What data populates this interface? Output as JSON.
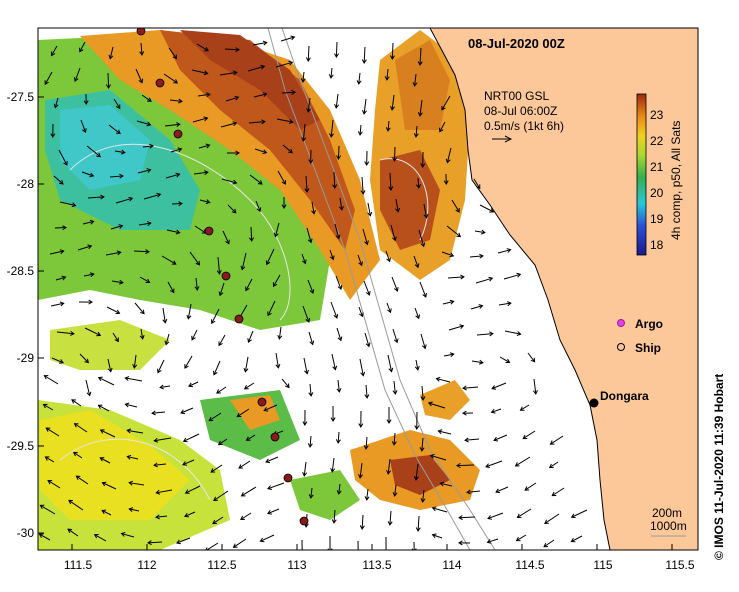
{
  "map": {
    "title": "08-Jul-2020 00Z",
    "current_info": {
      "line1": "NRT00 GSL",
      "line2": "08-Jul 06:00Z",
      "line3": "0.5m/s (1kt 6h)"
    },
    "colorbar": {
      "label": "4h comp, p50, All Sats",
      "ticks": [
        "18",
        "19",
        "20",
        "21",
        "22",
        "23"
      ]
    },
    "legend": {
      "argo": "Argo",
      "ship": "Ship"
    },
    "place_label": "Dongara",
    "isobaths": {
      "line1": "200m",
      "line2": "1000m"
    },
    "lat_ticks": [
      "-27.5",
      "-28",
      "-28.5",
      "-29",
      "-29.5",
      "-30"
    ],
    "lon_ticks": [
      "111.5",
      "112",
      "112.5",
      "113",
      "113.5",
      "114",
      "114.5",
      "115",
      "115.5"
    ],
    "credit": "© IMOS 11-Jul-2020 11:39 Hobart",
    "colors": {
      "land": "#fcc89a",
      "warm": "#c0581c",
      "mid": "#2ea84a",
      "cool": "#40c8c8",
      "ship_marker": "#8b1a1a"
    }
  }
}
